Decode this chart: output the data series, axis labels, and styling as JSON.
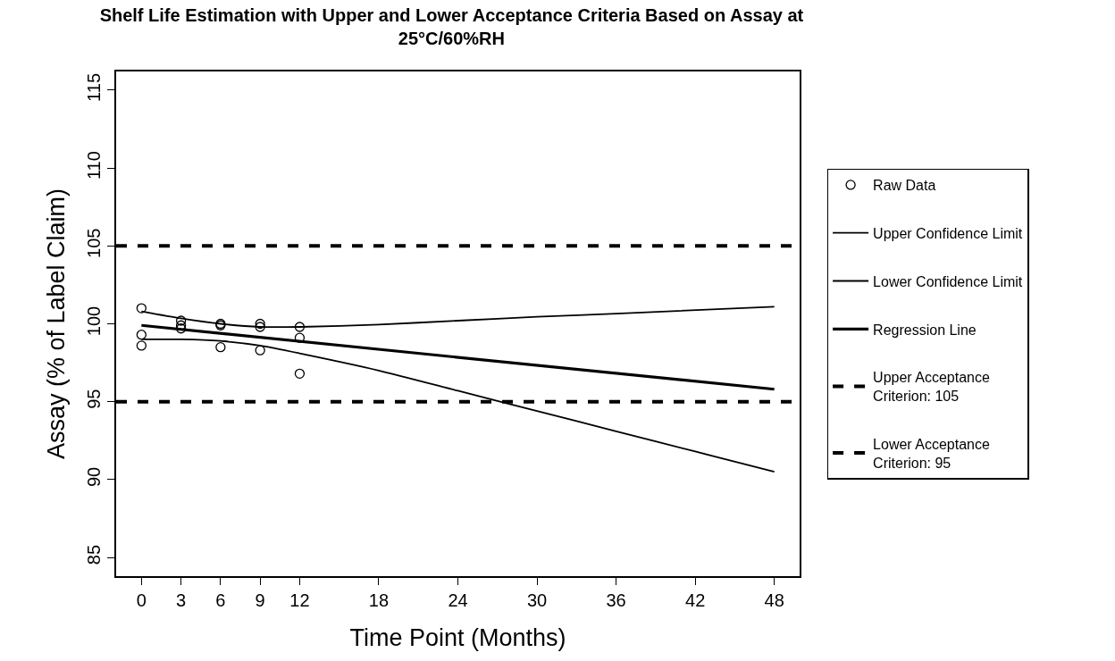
{
  "chart_data": {
    "type": "line",
    "title": "Shelf Life Estimation with Upper and Lower Acceptance Criteria Based on Assay at 25°C/60%RH",
    "xlabel": "Time Point (Months)",
    "ylabel": "Assay (% of Label Claim)",
    "xlim": [
      -1.92,
      49.92
    ],
    "xticks": [
      0,
      3,
      6,
      9,
      12,
      18,
      24,
      30,
      36,
      42,
      48
    ],
    "ylim": [
      83.8,
      116.2
    ],
    "yticks": [
      85,
      90,
      95,
      100,
      105,
      110,
      115
    ],
    "legend": "right",
    "series": [
      {
        "name": "Raw Data",
        "type": "scatter",
        "marker": "circle",
        "color": "#000000",
        "x": [
          0,
          0,
          0,
          3,
          3,
          3,
          6,
          6,
          6,
          9,
          9,
          9,
          12,
          12,
          12
        ],
        "values": [
          101.0,
          99.3,
          98.6,
          100.2,
          99.9,
          99.7,
          100.0,
          99.9,
          98.5,
          100.0,
          99.8,
          98.3,
          99.8,
          99.1,
          96.8
        ]
      },
      {
        "name": "Upper Confidence Limit",
        "line_style": "solid",
        "color": "#000000",
        "x": [
          0,
          3,
          6,
          9,
          12,
          18,
          24,
          30,
          36,
          48
        ],
        "values": [
          100.8,
          100.35,
          100.0,
          99.8,
          99.8,
          99.95,
          100.2,
          100.45,
          100.65,
          101.1
        ]
      },
      {
        "name": "Lower Confidence Limit",
        "line_style": "solid",
        "color": "#000000",
        "x": [
          0,
          3,
          6,
          9,
          12,
          18,
          24,
          30,
          36,
          42,
          48
        ],
        "values": [
          99.0,
          99.0,
          98.9,
          98.6,
          98.1,
          97.0,
          95.7,
          94.4,
          93.1,
          91.8,
          90.5
        ]
      },
      {
        "name": "Regression Line",
        "line_style": "solid",
        "color": "#000000",
        "x": [
          0,
          48
        ],
        "values": [
          99.9,
          95.8
        ]
      }
    ],
    "ref_lines": [
      {
        "axis": "y",
        "value": 105,
        "label": "Upper Acceptance Criterion: 105",
        "color": "#000000",
        "line_style": "dashed"
      },
      {
        "axis": "y",
        "value": 95,
        "label": "Lower Acceptance Criterion: 95",
        "color": "#000000",
        "line_style": "dashed"
      }
    ]
  }
}
